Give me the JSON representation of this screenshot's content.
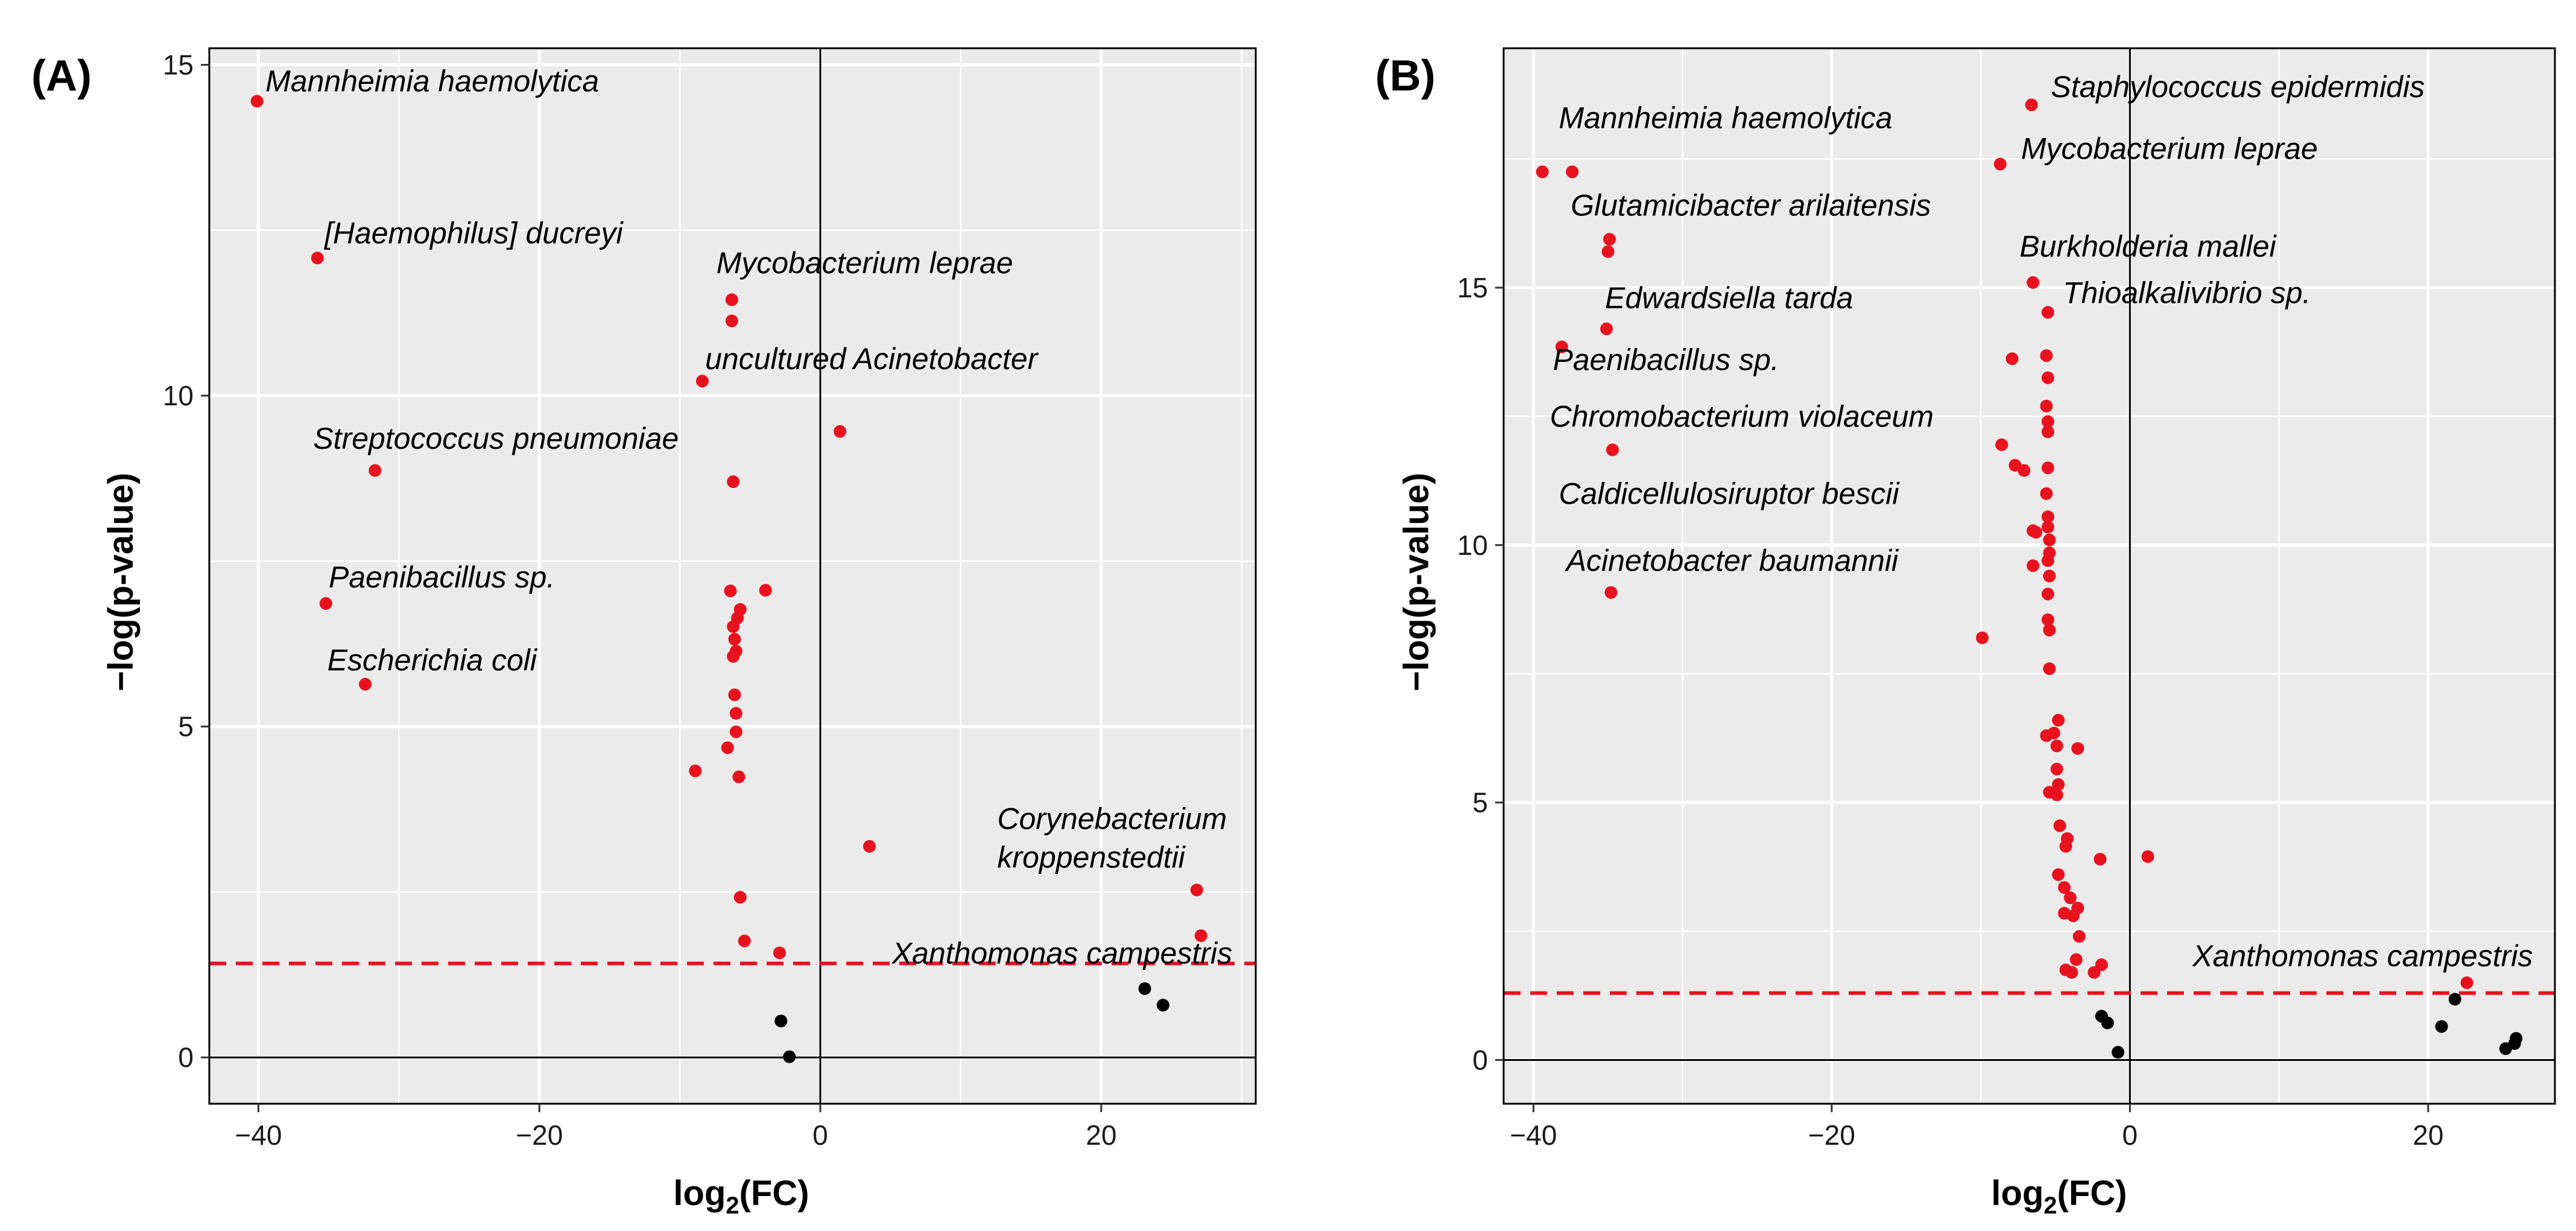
{
  "chart_data": [
    {
      "panel": "(A)",
      "type": "scatter",
      "subtype": "volcano",
      "xlabel": "log2(FC)",
      "ylabel": "−log(p-value)",
      "xlim": [
        -43.5,
        31
      ],
      "ylim": [
        -0.7,
        15.25
      ],
      "xticks": [
        -40,
        -20,
        0,
        20
      ],
      "xtick_labels": [
        "−40",
        "−20",
        "0",
        "20"
      ],
      "yticks": [
        0,
        5,
        10,
        15
      ],
      "ytick_labels": [
        "0",
        "5",
        "10",
        "15"
      ],
      "threshold": 1.42,
      "colors": {
        "significant": "#e8121f",
        "nonsignificant": "#000000",
        "threshold": "#e8121f"
      },
      "points": [
        {
          "x": -40.1,
          "y": 14.45,
          "label": "Mannheimia haemolytica",
          "sig": true
        },
        {
          "x": -35.8,
          "y": 12.08,
          "label": "[Haemophilus] ducreyi",
          "sig": true
        },
        {
          "x": -6.3,
          "y": 11.45,
          "label": "Mycobacterium leprae",
          "sig": true
        },
        {
          "x": -6.3,
          "y": 11.13,
          "label": "",
          "sig": true
        },
        {
          "x": -8.4,
          "y": 10.22,
          "label": "uncultured Acinetobacter",
          "sig": true
        },
        {
          "x": 1.4,
          "y": 9.46,
          "label": "",
          "sig": true
        },
        {
          "x": -31.7,
          "y": 8.87,
          "label": "Streptococcus pneumoniae",
          "sig": true
        },
        {
          "x": -6.2,
          "y": 8.7,
          "label": "",
          "sig": true
        },
        {
          "x": -6.4,
          "y": 7.05,
          "label": "",
          "sig": true
        },
        {
          "x": -3.9,
          "y": 7.06,
          "label": "",
          "sig": true
        },
        {
          "x": -35.2,
          "y": 6.86,
          "label": "Paenibacillus sp.",
          "sig": true
        },
        {
          "x": -5.7,
          "y": 6.77,
          "label": "",
          "sig": true
        },
        {
          "x": -5.9,
          "y": 6.64,
          "label": "",
          "sig": true
        },
        {
          "x": -6.2,
          "y": 6.51,
          "label": "",
          "sig": true
        },
        {
          "x": -6.1,
          "y": 6.32,
          "label": "",
          "sig": true
        },
        {
          "x": -6.0,
          "y": 6.14,
          "label": "",
          "sig": true
        },
        {
          "x": -6.2,
          "y": 6.06,
          "label": "",
          "sig": true
        },
        {
          "x": -32.4,
          "y": 5.64,
          "label": "Escherichia coli",
          "sig": true
        },
        {
          "x": -6.1,
          "y": 5.48,
          "label": "",
          "sig": true
        },
        {
          "x": -6.0,
          "y": 5.2,
          "label": "",
          "sig": true
        },
        {
          "x": -6.0,
          "y": 4.92,
          "label": "",
          "sig": true
        },
        {
          "x": -6.6,
          "y": 4.68,
          "label": "",
          "sig": true
        },
        {
          "x": -8.9,
          "y": 4.33,
          "label": "",
          "sig": true
        },
        {
          "x": -5.8,
          "y": 4.24,
          "label": "",
          "sig": true
        },
        {
          "x": 3.5,
          "y": 3.19,
          "label": "",
          "sig": true
        },
        {
          "x": 26.8,
          "y": 2.53,
          "label": "Corynebacterium kroppenstedtii",
          "sig": true
        },
        {
          "x": -5.7,
          "y": 2.42,
          "label": "",
          "sig": true
        },
        {
          "x": 27.1,
          "y": 1.84,
          "label": "",
          "sig": true
        },
        {
          "x": -5.4,
          "y": 1.76,
          "label": "",
          "sig": true
        },
        {
          "x": -2.9,
          "y": 1.58,
          "label": "Xanthomonas campestris",
          "sig": true
        },
        {
          "x": 23.1,
          "y": 1.04,
          "label": "",
          "sig": false
        },
        {
          "x": 24.4,
          "y": 0.79,
          "label": "",
          "sig": false
        },
        {
          "x": -2.8,
          "y": 0.55,
          "label": "",
          "sig": false
        },
        {
          "x": -2.2,
          "y": 0.01,
          "label": "",
          "sig": false
        }
      ]
    },
    {
      "panel": "(B)",
      "type": "scatter",
      "subtype": "volcano",
      "xlabel": "log2(FC)",
      "ylabel": "−log(p-value)",
      "xlim": [
        -42,
        28.5
      ],
      "ylim": [
        -0.85,
        19.65
      ],
      "xticks": [
        -40,
        -20,
        0,
        20
      ],
      "xtick_labels": [
        "−40",
        "−20",
        "0",
        "20"
      ],
      "yticks": [
        0,
        5,
        10,
        15
      ],
      "ytick_labels": [
        "0",
        "5",
        "10",
        "15"
      ],
      "threshold": 1.3,
      "colors": {
        "significant": "#e8121f",
        "nonsignificant": "#000000",
        "threshold": "#e8121f"
      },
      "points": [
        {
          "x": -6.6,
          "y": 18.55,
          "label": "Staphylococcus epidermidis",
          "sig": true
        },
        {
          "x": -8.7,
          "y": 17.4,
          "label": "Mycobacterium leprae",
          "sig": true
        },
        {
          "x": -39.4,
          "y": 17.25,
          "label": "Mannheimia haemolytica",
          "sig": true
        },
        {
          "x": -37.4,
          "y": 17.25,
          "label": "",
          "sig": true
        },
        {
          "x": -34.9,
          "y": 15.94,
          "label": "Glutamicibacter arilaitensis",
          "sig": true
        },
        {
          "x": -35.0,
          "y": 15.7,
          "label": "",
          "sig": true
        },
        {
          "x": -6.5,
          "y": 15.1,
          "label": "Burkholderia mallei",
          "sig": true
        },
        {
          "x": -5.5,
          "y": 14.52,
          "label": "Thioalkalivibrio sp.",
          "sig": true
        },
        {
          "x": -35.1,
          "y": 14.2,
          "label": "Edwardsiella tarda",
          "sig": true
        },
        {
          "x": -38.1,
          "y": 13.85,
          "label": "Paenibacillus sp.",
          "sig": true
        },
        {
          "x": -7.9,
          "y": 13.62,
          "label": "",
          "sig": true
        },
        {
          "x": -5.6,
          "y": 13.68,
          "label": "",
          "sig": true
        },
        {
          "x": -5.5,
          "y": 13.25,
          "label": "",
          "sig": true
        },
        {
          "x": -5.6,
          "y": 12.7,
          "label": "",
          "sig": true
        },
        {
          "x": -5.5,
          "y": 12.4,
          "label": "",
          "sig": true
        },
        {
          "x": -5.5,
          "y": 12.2,
          "label": "",
          "sig": true
        },
        {
          "x": -8.6,
          "y": 11.95,
          "label": "",
          "sig": true
        },
        {
          "x": -34.7,
          "y": 11.85,
          "label": "Chromobacterium violaceum",
          "sig": true
        },
        {
          "x": -7.7,
          "y": 11.55,
          "label": "",
          "sig": true
        },
        {
          "x": -7.1,
          "y": 11.45,
          "label": "",
          "sig": true
        },
        {
          "x": -5.5,
          "y": 11.5,
          "label": "",
          "sig": true
        },
        {
          "x": -5.6,
          "y": 11.0,
          "label": "",
          "sig": true
        },
        {
          "x": -5.5,
          "y": 10.55,
          "label": "",
          "sig": true
        },
        {
          "x": -5.5,
          "y": 10.35,
          "label": "Caldicellulosiruptor bescii",
          "sig": true
        },
        {
          "x": -6.5,
          "y": 10.28,
          "label": "",
          "sig": true
        },
        {
          "x": -6.3,
          "y": 10.25,
          "label": "",
          "sig": true
        },
        {
          "x": -5.4,
          "y": 10.1,
          "label": "",
          "sig": true
        },
        {
          "x": -5.4,
          "y": 9.85,
          "label": "",
          "sig": true
        },
        {
          "x": -5.5,
          "y": 9.7,
          "label": "",
          "sig": true
        },
        {
          "x": -6.5,
          "y": 9.6,
          "label": "",
          "sig": true
        },
        {
          "x": -5.4,
          "y": 9.4,
          "label": "",
          "sig": true
        },
        {
          "x": -34.8,
          "y": 9.08,
          "label": "Acinetobacter baumannii",
          "sig": true
        },
        {
          "x": -5.5,
          "y": 9.05,
          "label": "",
          "sig": true
        },
        {
          "x": -5.5,
          "y": 8.55,
          "label": "",
          "sig": true
        },
        {
          "x": -5.4,
          "y": 8.35,
          "label": "",
          "sig": true
        },
        {
          "x": -9.9,
          "y": 8.2,
          "label": "",
          "sig": true
        },
        {
          "x": -5.4,
          "y": 7.6,
          "label": "",
          "sig": true
        },
        {
          "x": -4.8,
          "y": 6.6,
          "label": "",
          "sig": true
        },
        {
          "x": -5.6,
          "y": 6.3,
          "label": "",
          "sig": true
        },
        {
          "x": -5.1,
          "y": 6.35,
          "label": "",
          "sig": true
        },
        {
          "x": -4.9,
          "y": 6.1,
          "label": "",
          "sig": true
        },
        {
          "x": -3.5,
          "y": 6.05,
          "label": "",
          "sig": true
        },
        {
          "x": -4.9,
          "y": 5.65,
          "label": "",
          "sig": true
        },
        {
          "x": -4.8,
          "y": 5.35,
          "label": "",
          "sig": true
        },
        {
          "x": -5.4,
          "y": 5.2,
          "label": "",
          "sig": true
        },
        {
          "x": -4.9,
          "y": 5.15,
          "label": "",
          "sig": true
        },
        {
          "x": -4.7,
          "y": 4.55,
          "label": "",
          "sig": true
        },
        {
          "x": -4.2,
          "y": 4.3,
          "label": "",
          "sig": true
        },
        {
          "x": -4.3,
          "y": 4.15,
          "label": "",
          "sig": true
        },
        {
          "x": -2.0,
          "y": 3.9,
          "label": "",
          "sig": true
        },
        {
          "x": 1.2,
          "y": 3.95,
          "label": "",
          "sig": true
        },
        {
          "x": -4.8,
          "y": 3.6,
          "label": "",
          "sig": true
        },
        {
          "x": -4.4,
          "y": 3.35,
          "label": "",
          "sig": true
        },
        {
          "x": -4.0,
          "y": 3.15,
          "label": "",
          "sig": true
        },
        {
          "x": -3.5,
          "y": 2.95,
          "label": "",
          "sig": true
        },
        {
          "x": -4.4,
          "y": 2.85,
          "label": "",
          "sig": true
        },
        {
          "x": -3.8,
          "y": 2.8,
          "label": "",
          "sig": true
        },
        {
          "x": -3.4,
          "y": 2.4,
          "label": "",
          "sig": true
        },
        {
          "x": -3.6,
          "y": 1.95,
          "label": "",
          "sig": true
        },
        {
          "x": -4.3,
          "y": 1.75,
          "label": "",
          "sig": true
        },
        {
          "x": -3.9,
          "y": 1.7,
          "label": "",
          "sig": true
        },
        {
          "x": -2.4,
          "y": 1.7,
          "label": "",
          "sig": true
        },
        {
          "x": -1.9,
          "y": 1.85,
          "label": "",
          "sig": true
        },
        {
          "x": 22.6,
          "y": 1.5,
          "label": "Xanthomonas campestris",
          "sig": true
        },
        {
          "x": 21.8,
          "y": 1.18,
          "label": "",
          "sig": false
        },
        {
          "x": -1.9,
          "y": 0.85,
          "label": "",
          "sig": false
        },
        {
          "x": -1.5,
          "y": 0.72,
          "label": "",
          "sig": false
        },
        {
          "x": 20.9,
          "y": 0.65,
          "label": "",
          "sig": false
        },
        {
          "x": 25.9,
          "y": 0.42,
          "label": "",
          "sig": false
        },
        {
          "x": 25.8,
          "y": 0.32,
          "label": "",
          "sig": false
        },
        {
          "x": 25.2,
          "y": 0.22,
          "label": "",
          "sig": false
        },
        {
          "x": -0.8,
          "y": 0.15,
          "label": "",
          "sig": false
        }
      ]
    }
  ],
  "labels": {
    "A": [
      {
        "text": "Mannheimia haemolytica",
        "x": -39.5,
        "y": 14.6
      },
      {
        "text": "[Haemophilus] ducreyi",
        "x": -35.3,
        "y": 12.3
      },
      {
        "text": "Mycobacterium leprae",
        "x": -7.4,
        "y": 11.85
      },
      {
        "text": "uncultured Acinetobacter",
        "x": -8.2,
        "y": 10.4
      },
      {
        "text": "Streptococcus pneumoniae",
        "x": -36.1,
        "y": 9.2
      },
      {
        "text": "Paenibacillus sp.",
        "x": -35.0,
        "y": 7.1
      },
      {
        "text": "Escherichia coli",
        "x": -35.1,
        "y": 5.85
      },
      {
        "text": "Corynebacterium",
        "x": 12.6,
        "y": 3.45
      },
      {
        "text": "kroppenstedtii",
        "x": 12.6,
        "y": 2.87
      },
      {
        "text": "Xanthomonas campestris",
        "x": 5.1,
        "y": 1.42
      }
    ],
    "B": [
      {
        "text": "Staphylococcus epidermidis",
        "x": -5.3,
        "y": 18.7
      },
      {
        "text": "Mycobacterium leprae",
        "x": -7.3,
        "y": 17.5
      },
      {
        "text": "Mannheimia haemolytica",
        "x": -38.3,
        "y": 18.1
      },
      {
        "text": "Glutamicibacter arilaitensis",
        "x": -37.5,
        "y": 16.4
      },
      {
        "text": "Burkholderia mallei",
        "x": -7.4,
        "y": 15.6
      },
      {
        "text": "Thioalkalivibrio sp.",
        "x": -4.5,
        "y": 14.7
      },
      {
        "text": "Edwardsiella tarda",
        "x": -35.2,
        "y": 14.6
      },
      {
        "text": "Paenibacillus sp.",
        "x": -38.7,
        "y": 13.4
      },
      {
        "text": "Chromobacterium violaceum",
        "x": -38.9,
        "y": 12.3
      },
      {
        "text": "Caldicellulosiruptor bescii",
        "x": -38.3,
        "y": 10.8
      },
      {
        "text": "Acinetobacter baumannii",
        "x": -37.8,
        "y": 9.5
      },
      {
        "text": "Xanthomonas campestris",
        "x": 4.2,
        "y": 1.82
      }
    ]
  }
}
